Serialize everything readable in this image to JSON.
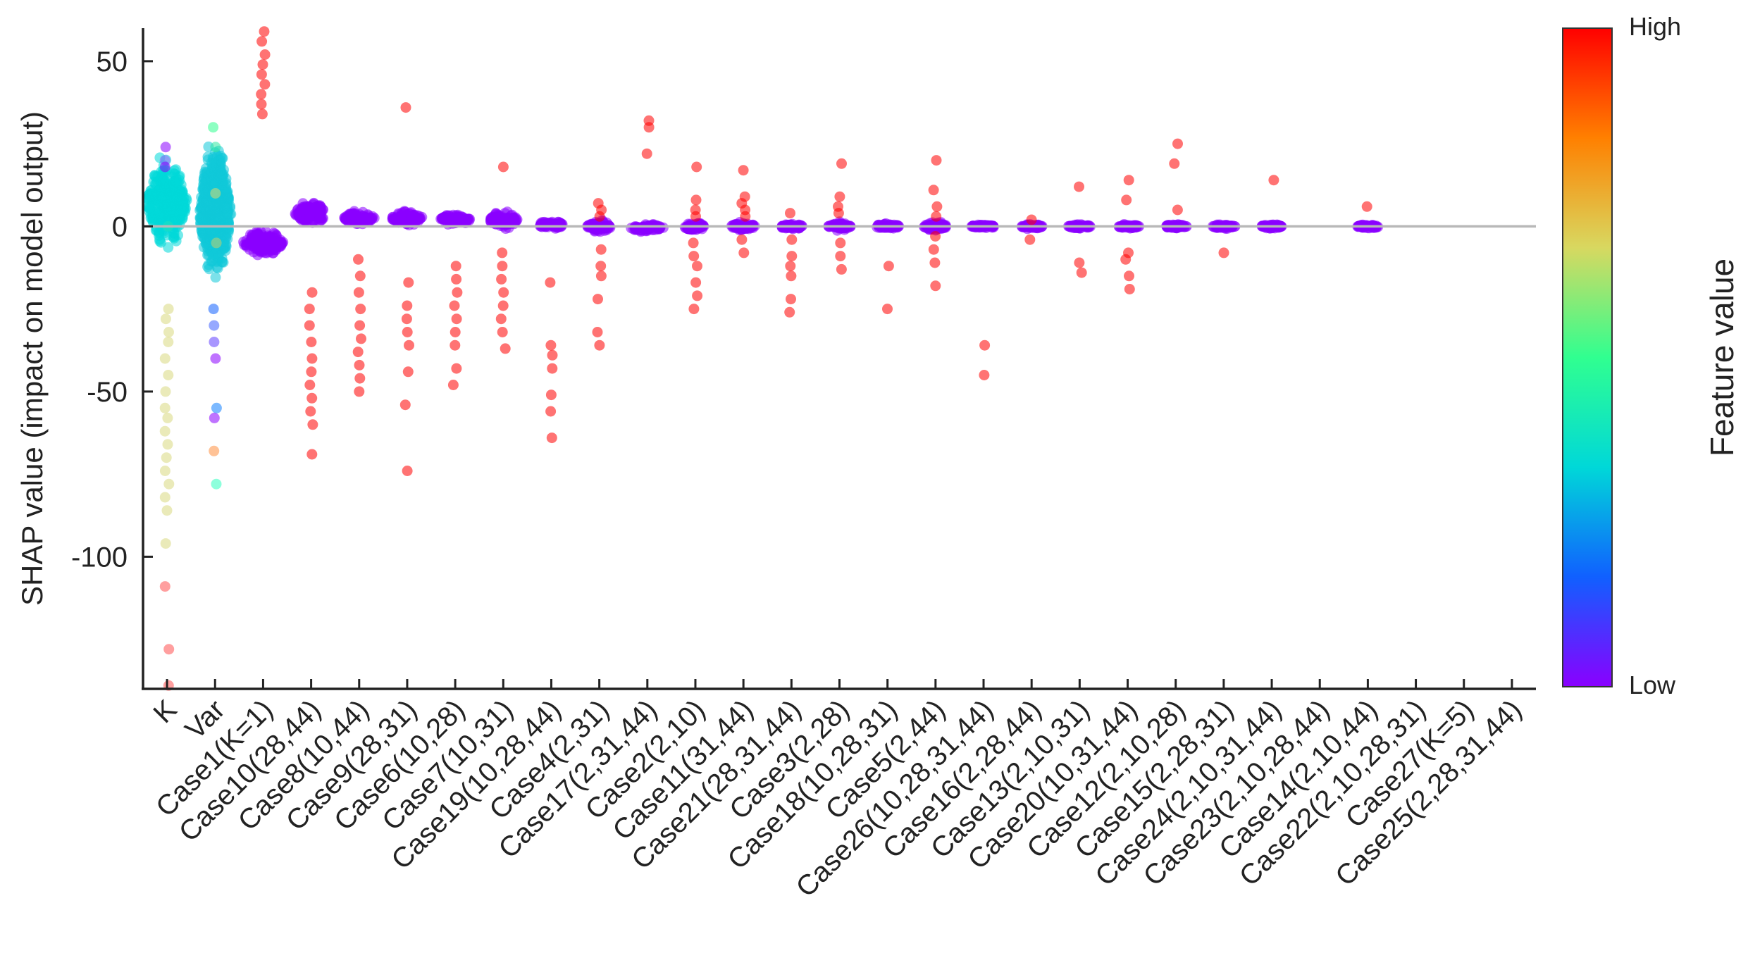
{
  "chart_data": {
    "type": "scatter",
    "subtype": "shap-beeswarm",
    "title": "",
    "ylabel": "SHAP value (impact on model output)",
    "xlabel": "",
    "ylim": [
      -140,
      60
    ],
    "yticks": [
      50,
      0,
      -50,
      -100
    ],
    "zero_line": true,
    "grid": false,
    "colorbar": {
      "label": "Feature value",
      "high_label": "High",
      "low_label": "Low",
      "colors": [
        "#ff0000",
        "#ff8000",
        "#d8d860",
        "#30ff90",
        "#00d8d8",
        "#1060ff",
        "#8a00ff"
      ]
    },
    "features": [
      {
        "name": "K",
        "core_min": -8,
        "core_max": 22,
        "core_color": "#00d8d8",
        "core_spread": 0.9,
        "outliers": [
          {
            "v": 24,
            "c": "#8a00ff"
          },
          {
            "v": 20,
            "c": "#a060ff"
          },
          {
            "v": 18,
            "c": "#8a00ff"
          },
          {
            "v": 0,
            "c": "#20e0c0"
          },
          {
            "v": -25,
            "c": "#d8d880"
          },
          {
            "v": -28,
            "c": "#d8d880"
          },
          {
            "v": -32,
            "c": "#d8d880"
          },
          {
            "v": -35,
            "c": "#d8d880"
          },
          {
            "v": -40,
            "c": "#d8d880"
          },
          {
            "v": -45,
            "c": "#d8d880"
          },
          {
            "v": -50,
            "c": "#d8d880"
          },
          {
            "v": -55,
            "c": "#d8d880"
          },
          {
            "v": -58,
            "c": "#d8d880"
          },
          {
            "v": -62,
            "c": "#d8d880"
          },
          {
            "v": -66,
            "c": "#d8d880"
          },
          {
            "v": -70,
            "c": "#d8d880"
          },
          {
            "v": -74,
            "c": "#d8d880"
          },
          {
            "v": -78,
            "c": "#d8d880"
          },
          {
            "v": -82,
            "c": "#d8d880"
          },
          {
            "v": -86,
            "c": "#d8d880"
          },
          {
            "v": -96,
            "c": "#d8d880"
          },
          {
            "v": -109,
            "c": "#ff5050"
          },
          {
            "v": -128,
            "c": "#ff5050"
          },
          {
            "v": -139,
            "c": "#ff5050"
          }
        ]
      },
      {
        "name": "Var",
        "core_min": -20,
        "core_max": 28,
        "core_color": "#10c8d8",
        "core_spread": 0.7,
        "outliers": [
          {
            "v": 30,
            "c": "#30ff90"
          },
          {
            "v": 24,
            "c": "#30e8a0"
          },
          {
            "v": 10,
            "c": "#d8d870"
          },
          {
            "v": -5,
            "c": "#c0d070"
          },
          {
            "v": -25,
            "c": "#1060ff"
          },
          {
            "v": -30,
            "c": "#4060ff"
          },
          {
            "v": -35,
            "c": "#6040ff"
          },
          {
            "v": -40,
            "c": "#8a00ff"
          },
          {
            "v": -55,
            "c": "#1080ff"
          },
          {
            "v": -58,
            "c": "#8a00ff"
          },
          {
            "v": -68,
            "c": "#ff9040"
          },
          {
            "v": -78,
            "c": "#30ffc0"
          }
        ]
      },
      {
        "name": "Case1(K=1)",
        "core_min": -10,
        "core_max": 0,
        "core_color": "#8a00ff",
        "core_spread": 0.9,
        "outliers": [
          {
            "v": 59,
            "c": "#ff0000"
          },
          {
            "v": 56,
            "c": "#ff0000"
          },
          {
            "v": 52,
            "c": "#ff0000"
          },
          {
            "v": 49,
            "c": "#ff0000"
          },
          {
            "v": 46,
            "c": "#ff0000"
          },
          {
            "v": 43,
            "c": "#ff0000"
          },
          {
            "v": 40,
            "c": "#ff0000"
          },
          {
            "v": 37,
            "c": "#ff0000"
          },
          {
            "v": 34,
            "c": "#ff0000"
          }
        ]
      },
      {
        "name": "Case10(28,44)",
        "core_min": 0,
        "core_max": 8,
        "core_color": "#8a00ff",
        "core_spread": 0.75,
        "outliers": [
          {
            "v": -20,
            "c": "#ff0000"
          },
          {
            "v": -25,
            "c": "#ff0000"
          },
          {
            "v": -30,
            "c": "#ff0000"
          },
          {
            "v": -35,
            "c": "#ff0000"
          },
          {
            "v": -40,
            "c": "#ff0000"
          },
          {
            "v": -44,
            "c": "#ff0000"
          },
          {
            "v": -48,
            "c": "#ff0000"
          },
          {
            "v": -52,
            "c": "#ff0000"
          },
          {
            "v": -56,
            "c": "#ff0000"
          },
          {
            "v": -60,
            "c": "#ff0000"
          },
          {
            "v": -69,
            "c": "#ff0000"
          }
        ]
      },
      {
        "name": "Case8(10,44)",
        "core_min": 0,
        "core_max": 5,
        "core_color": "#8a00ff",
        "core_spread": 0.7,
        "outliers": [
          {
            "v": -10,
            "c": "#ff0000"
          },
          {
            "v": -15,
            "c": "#ff0000"
          },
          {
            "v": -20,
            "c": "#ff0000"
          },
          {
            "v": -25,
            "c": "#ff0000"
          },
          {
            "v": -30,
            "c": "#ff0000"
          },
          {
            "v": -34,
            "c": "#ff0000"
          },
          {
            "v": -38,
            "c": "#ff0000"
          },
          {
            "v": -42,
            "c": "#ff0000"
          },
          {
            "v": -46,
            "c": "#ff0000"
          },
          {
            "v": -50,
            "c": "#ff0000"
          }
        ]
      },
      {
        "name": "Case9(28,31)",
        "core_min": 0,
        "core_max": 5,
        "core_color": "#8a00ff",
        "core_spread": 0.7,
        "outliers": [
          {
            "v": 36,
            "c": "#ff0000"
          },
          {
            "v": -17,
            "c": "#ff0000"
          },
          {
            "v": -24,
            "c": "#ff0000"
          },
          {
            "v": -28,
            "c": "#ff0000"
          },
          {
            "v": -32,
            "c": "#ff0000"
          },
          {
            "v": -36,
            "c": "#ff0000"
          },
          {
            "v": -44,
            "c": "#ff0000"
          },
          {
            "v": -54,
            "c": "#ff0000"
          },
          {
            "v": -74,
            "c": "#ff0000"
          }
        ]
      },
      {
        "name": "Case6(10,28)",
        "core_min": 0,
        "core_max": 4,
        "core_color": "#8a00ff",
        "core_spread": 0.7,
        "outliers": [
          {
            "v": -12,
            "c": "#ff0000"
          },
          {
            "v": -16,
            "c": "#ff0000"
          },
          {
            "v": -20,
            "c": "#ff0000"
          },
          {
            "v": -24,
            "c": "#ff0000"
          },
          {
            "v": -28,
            "c": "#ff0000"
          },
          {
            "v": -32,
            "c": "#ff0000"
          },
          {
            "v": -36,
            "c": "#ff0000"
          },
          {
            "v": -43,
            "c": "#ff0000"
          },
          {
            "v": -48,
            "c": "#ff0000"
          }
        ]
      },
      {
        "name": "Case7(10,31)",
        "core_min": -1,
        "core_max": 5,
        "core_color": "#8a00ff",
        "core_spread": 0.65,
        "outliers": [
          {
            "v": 18,
            "c": "#ff0000"
          },
          {
            "v": -8,
            "c": "#ff0000"
          },
          {
            "v": -12,
            "c": "#ff0000"
          },
          {
            "v": -16,
            "c": "#ff0000"
          },
          {
            "v": -20,
            "c": "#ff0000"
          },
          {
            "v": -24,
            "c": "#ff0000"
          },
          {
            "v": -28,
            "c": "#ff0000"
          },
          {
            "v": -32,
            "c": "#ff0000"
          },
          {
            "v": -37,
            "c": "#ff0000"
          }
        ]
      },
      {
        "name": "Case19(10,28,44)",
        "core_min": -1,
        "core_max": 2,
        "core_color": "#8a00ff",
        "core_spread": 0.6,
        "outliers": [
          {
            "v": -17,
            "c": "#ff0000"
          },
          {
            "v": -36,
            "c": "#ff0000"
          },
          {
            "v": -39,
            "c": "#ff0000"
          },
          {
            "v": -43,
            "c": "#ff0000"
          },
          {
            "v": -51,
            "c": "#ff0000"
          },
          {
            "v": -56,
            "c": "#ff0000"
          },
          {
            "v": -64,
            "c": "#ff0000"
          }
        ]
      },
      {
        "name": "Case4(2,31)",
        "core_min": -2,
        "core_max": 2,
        "core_color": "#8a00ff",
        "core_spread": 0.55,
        "outliers": [
          {
            "v": 7,
            "c": "#ff0000"
          },
          {
            "v": 5,
            "c": "#ff0000"
          },
          {
            "v": 3,
            "c": "#ff0000"
          },
          {
            "v": -7,
            "c": "#ff0000"
          },
          {
            "v": -12,
            "c": "#ff0000"
          },
          {
            "v": -15,
            "c": "#ff0000"
          },
          {
            "v": -22,
            "c": "#ff0000"
          },
          {
            "v": -32,
            "c": "#ff0000"
          },
          {
            "v": -36,
            "c": "#ff0000"
          }
        ]
      },
      {
        "name": "Case17(2,31,44)",
        "core_min": -2,
        "core_max": 1,
        "core_color": "#8a00ff",
        "core_spread": 0.75,
        "outliers": [
          {
            "v": 32,
            "c": "#ff0000"
          },
          {
            "v": 30,
            "c": "#ff0000"
          },
          {
            "v": 22,
            "c": "#ff0000"
          }
        ]
      },
      {
        "name": "Case2(2,10)",
        "core_min": -1.5,
        "core_max": 1.5,
        "core_color": "#8a00ff",
        "core_spread": 0.55,
        "outliers": [
          {
            "v": 18,
            "c": "#ff0000"
          },
          {
            "v": 8,
            "c": "#ff0000"
          },
          {
            "v": 5,
            "c": "#ff0000"
          },
          {
            "v": 3,
            "c": "#ff0000"
          },
          {
            "v": -5,
            "c": "#ff0000"
          },
          {
            "v": -9,
            "c": "#ff0000"
          },
          {
            "v": -12,
            "c": "#ff0000"
          },
          {
            "v": -17,
            "c": "#ff0000"
          },
          {
            "v": -21,
            "c": "#ff0000"
          },
          {
            "v": -25,
            "c": "#ff0000"
          }
        ]
      },
      {
        "name": "Case11(31,44)",
        "core_min": -1.5,
        "core_max": 1.5,
        "core_color": "#8a00ff",
        "core_spread": 0.55,
        "outliers": [
          {
            "v": 17,
            "c": "#ff0000"
          },
          {
            "v": 9,
            "c": "#ff0000"
          },
          {
            "v": 7,
            "c": "#ff0000"
          },
          {
            "v": 5,
            "c": "#ff0000"
          },
          {
            "v": 3,
            "c": "#ff0000"
          },
          {
            "v": -4,
            "c": "#ff0000"
          },
          {
            "v": -8,
            "c": "#ff0000"
          }
        ]
      },
      {
        "name": "Case21(28,31,44)",
        "core_min": -1,
        "core_max": 1,
        "core_color": "#8a00ff",
        "core_spread": 0.55,
        "outliers": [
          {
            "v": 4,
            "c": "#ff0000"
          },
          {
            "v": -4,
            "c": "#ff0000"
          },
          {
            "v": -9,
            "c": "#ff0000"
          },
          {
            "v": -12,
            "c": "#ff0000"
          },
          {
            "v": -15,
            "c": "#ff0000"
          },
          {
            "v": -22,
            "c": "#ff0000"
          },
          {
            "v": -26,
            "c": "#ff0000"
          }
        ]
      },
      {
        "name": "Case3(2,28)",
        "core_min": -1.5,
        "core_max": 1.5,
        "core_color": "#8a00ff",
        "core_spread": 0.55,
        "outliers": [
          {
            "v": 19,
            "c": "#ff0000"
          },
          {
            "v": 9,
            "c": "#ff0000"
          },
          {
            "v": 6,
            "c": "#ff0000"
          },
          {
            "v": 4,
            "c": "#ff0000"
          },
          {
            "v": -5,
            "c": "#ff0000"
          },
          {
            "v": -9,
            "c": "#ff0000"
          },
          {
            "v": -13,
            "c": "#ff0000"
          }
        ]
      },
      {
        "name": "Case18(10,28,31)",
        "core_min": -1,
        "core_max": 1,
        "core_color": "#8a00ff",
        "core_spread": 0.55,
        "outliers": [
          {
            "v": -12,
            "c": "#ff0000"
          },
          {
            "v": -25,
            "c": "#ff0000"
          }
        ]
      },
      {
        "name": "Case5(2,44)",
        "core_min": -1.5,
        "core_max": 1.5,
        "core_color": "#8a00ff",
        "core_spread": 0.55,
        "outliers": [
          {
            "v": 20,
            "c": "#ff0000"
          },
          {
            "v": 11,
            "c": "#ff0000"
          },
          {
            "v": 6,
            "c": "#ff0000"
          },
          {
            "v": 3,
            "c": "#ff0000"
          },
          {
            "v": -3,
            "c": "#ff0000"
          },
          {
            "v": -7,
            "c": "#ff0000"
          },
          {
            "v": -11,
            "c": "#ff0000"
          },
          {
            "v": -18,
            "c": "#ff0000"
          }
        ]
      },
      {
        "name": "Case26(10,28,31,44)",
        "core_min": -0.8,
        "core_max": 0.8,
        "core_color": "#8a00ff",
        "core_spread": 0.55,
        "outliers": [
          {
            "v": -36,
            "c": "#ff0000"
          },
          {
            "v": -45,
            "c": "#ff0000"
          }
        ]
      },
      {
        "name": "Case16(2,28,44)",
        "core_min": -0.8,
        "core_max": 0.8,
        "core_color": "#8a00ff",
        "core_spread": 0.5,
        "outliers": [
          {
            "v": 2,
            "c": "#ff0000"
          },
          {
            "v": -4,
            "c": "#ff0000"
          }
        ]
      },
      {
        "name": "Case13(2,10,31)",
        "core_min": -0.8,
        "core_max": 0.8,
        "core_color": "#8a00ff",
        "core_spread": 0.5,
        "outliers": [
          {
            "v": 12,
            "c": "#ff0000"
          },
          {
            "v": -11,
            "c": "#ff0000"
          },
          {
            "v": -14,
            "c": "#ff0000"
          }
        ]
      },
      {
        "name": "Case20(10,31,44)",
        "core_min": -0.8,
        "core_max": 0.8,
        "core_color": "#8a00ff",
        "core_spread": 0.5,
        "outliers": [
          {
            "v": 14,
            "c": "#ff0000"
          },
          {
            "v": 8,
            "c": "#ff0000"
          },
          {
            "v": -8,
            "c": "#ff0000"
          },
          {
            "v": -10,
            "c": "#ff0000"
          },
          {
            "v": -15,
            "c": "#ff0000"
          },
          {
            "v": -19,
            "c": "#ff0000"
          }
        ]
      },
      {
        "name": "Case12(2,10,28)",
        "core_min": -0.8,
        "core_max": 0.8,
        "core_color": "#8a00ff",
        "core_spread": 0.5,
        "outliers": [
          {
            "v": 25,
            "c": "#ff0000"
          },
          {
            "v": 19,
            "c": "#ff0000"
          },
          {
            "v": 5,
            "c": "#ff0000"
          }
        ]
      },
      {
        "name": "Case15(2,28,31)",
        "core_min": -0.8,
        "core_max": 0.8,
        "core_color": "#8a00ff",
        "core_spread": 0.5,
        "outliers": [
          {
            "v": -8,
            "c": "#ff0000"
          }
        ]
      },
      {
        "name": "Case24(2,10,31,44)",
        "core_min": -0.8,
        "core_max": 0.8,
        "core_color": "#8a00ff",
        "core_spread": 0.5,
        "outliers": [
          {
            "v": 14,
            "c": "#ff0000"
          }
        ]
      },
      {
        "name": "Case23(2,10,28,44)",
        "core_min": 0,
        "core_max": 0,
        "core_color": "#8a00ff",
        "core_spread": 0,
        "outliers": []
      },
      {
        "name": "Case14(2,10,44)",
        "core_min": -0.8,
        "core_max": 0.8,
        "core_color": "#8a00ff",
        "core_spread": 0.5,
        "outliers": [
          {
            "v": 6,
            "c": "#ff0000"
          }
        ]
      },
      {
        "name": "Case22(2,10,28,31)",
        "core_min": 0,
        "core_max": 0,
        "core_color": "#8a00ff",
        "core_spread": 0,
        "outliers": []
      },
      {
        "name": "Case27(K=5)",
        "core_min": 0,
        "core_max": 0,
        "core_color": "#8a00ff",
        "core_spread": 0,
        "outliers": []
      },
      {
        "name": "Case25(2,28,31,44)",
        "core_min": 0,
        "core_max": 0,
        "core_color": "#8a00ff",
        "core_spread": 0,
        "outliers": []
      }
    ]
  }
}
